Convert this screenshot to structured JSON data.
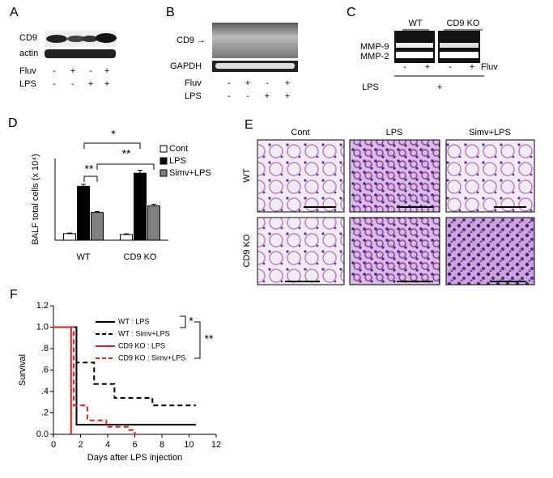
{
  "panels": {
    "A": {
      "label": "A",
      "rows": [
        "CD9",
        "actin"
      ],
      "treatments": [
        {
          "name": "Fluv",
          "signs": [
            "-",
            "+",
            "-",
            "+"
          ]
        },
        {
          "name": "LPS",
          "signs": [
            "-",
            "-",
            "+",
            "+"
          ]
        }
      ]
    },
    "B": {
      "label": "B",
      "rows": [
        "CD9 →",
        "GAPDH"
      ],
      "treatments": [
        {
          "name": "Fluv",
          "signs": [
            "-",
            "+",
            "-",
            "+"
          ]
        },
        {
          "name": "LPS",
          "signs": [
            "-",
            "-",
            "+",
            "+"
          ]
        }
      ]
    },
    "C": {
      "label": "C",
      "groups": [
        "WT",
        "CD9 KO"
      ],
      "bands": [
        "MMP-9",
        "MMP-2"
      ],
      "fluv": {
        "name": "Fluv",
        "signs": [
          "-",
          "+",
          "-",
          "+"
        ]
      },
      "lps": {
        "name": "LPS",
        "sign": "+"
      }
    },
    "E": {
      "label": "E",
      "columns": [
        "Cont",
        "LPS",
        "Simv+LPS"
      ],
      "rows": [
        "WT",
        "CD9 KO"
      ]
    }
  },
  "chart_data": [
    {
      "type": "bar",
      "label": "D",
      "y_label": "BALF total cells (x 10⁴)",
      "categories": [
        "WT",
        "CD9 KO"
      ],
      "ylim": [
        0,
        50
      ],
      "legend": "upper right",
      "series": [
        {
          "name": "Cont",
          "color": "#ffffff",
          "values": [
            4,
            3.5
          ],
          "errors": [
            0.4,
            0.4
          ]
        },
        {
          "name": "LPS",
          "color": "#000000",
          "values": [
            33,
            41
          ],
          "errors": [
            1.2,
            1.8
          ]
        },
        {
          "name": "Simv+LPS",
          "color": "#808080",
          "values": [
            17,
            21
          ],
          "errors": [
            0.6,
            1.0
          ]
        }
      ],
      "annotations": [
        "*",
        "**",
        "**"
      ]
    },
    {
      "type": "line",
      "label": "F",
      "x_label": "Days after LPS injection",
      "y_label": "Survival",
      "xlim": [
        0,
        12
      ],
      "xticks": [
        0,
        2,
        4,
        6,
        8,
        10,
        12
      ],
      "ylim": [
        0,
        1.2
      ],
      "yticks": [
        {
          "value": 0,
          "label": "0.0"
        },
        {
          "value": 0.2,
          "label": ".2"
        },
        {
          "value": 0.4,
          "label": ".4"
        },
        {
          "value": 0.6,
          "label": ".6"
        },
        {
          "value": 0.8,
          "label": ".8"
        },
        {
          "value": 1,
          "label": "1.0"
        },
        1.2
      ],
      "legend": "upper right",
      "series": [
        {
          "name": "WT : LPS",
          "color": "#000000",
          "dash": false,
          "x": [
            0,
            1.7,
            1.7,
            10.5
          ],
          "values": [
            1,
            1,
            0.09,
            0.09
          ]
        },
        {
          "name": "WT : Simv+LPS",
          "color": "#000000",
          "dash": true,
          "x": [
            0,
            1.7,
            1.7,
            3,
            3,
            4.5,
            4.5,
            7.3,
            7.3,
            10.5
          ],
          "values": [
            1,
            1,
            0.67,
            0.67,
            0.47,
            0.47,
            0.34,
            0.34,
            0.27,
            0.27
          ]
        },
        {
          "name": "CD9 KO : LPS",
          "color": "#e02020",
          "dash": false,
          "x": [
            0,
            1.3,
            1.3
          ],
          "values": [
            1,
            1,
            0
          ]
        },
        {
          "name": "CD9 KO : Simv+LPS",
          "color": "#e02020",
          "dash": true,
          "x": [
            0,
            1.5,
            1.5,
            2.5,
            2.5,
            3.9,
            3.9,
            5.6,
            5.6,
            6,
            6
          ],
          "values": [
            1,
            1,
            0.27,
            0.27,
            0.13,
            0.13,
            0.07,
            0.07,
            0.04,
            0.04,
            0
          ]
        }
      ],
      "annotations": [
        "*",
        "**"
      ]
    }
  ]
}
